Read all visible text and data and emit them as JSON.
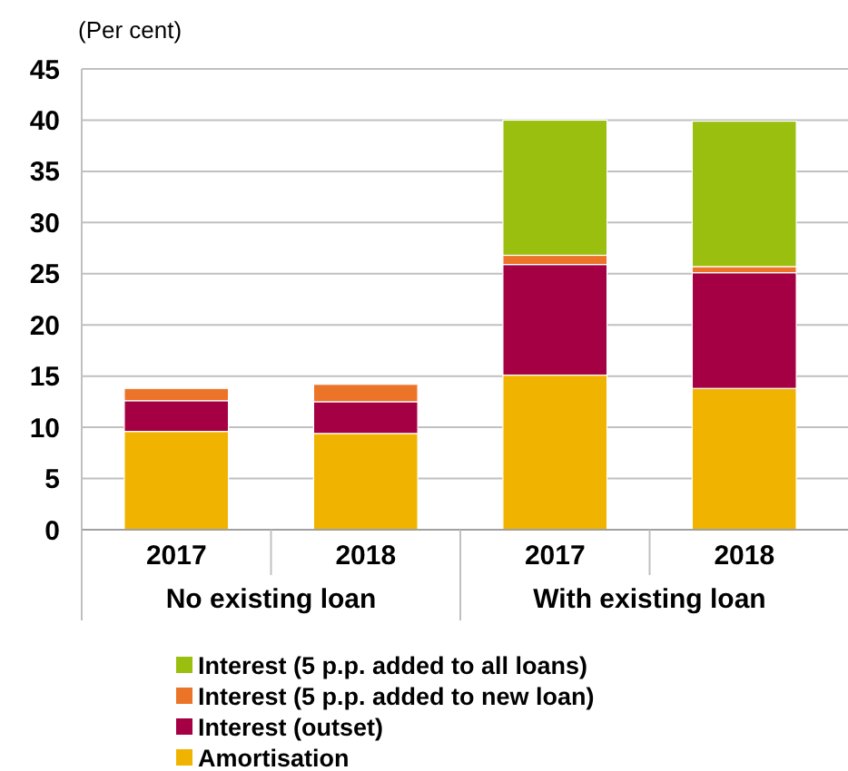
{
  "chart_data": {
    "type": "bar",
    "stacked": true,
    "ylabel": "(Per cent)",
    "categories": [
      "2017",
      "2018",
      "2017",
      "2018"
    ],
    "annotations": [
      "No existing loan",
      "With existing loan"
    ],
    "series": [
      {
        "name": "Amortisation",
        "color": "#f0b400",
        "values": [
          9.6,
          9.4,
          15.1,
          13.8
        ]
      },
      {
        "name": "Interest (outset)",
        "color": "#a50044",
        "values": [
          3.0,
          3.1,
          10.8,
          11.3
        ]
      },
      {
        "name": "Interest (5 p.p. added to new loan)",
        "color": "#ec7429",
        "values": [
          1.2,
          1.7,
          0.9,
          0.6
        ]
      },
      {
        "name": "Interest (5 p.p. added to all loans)",
        "color": "#9abf0f",
        "values": [
          null,
          null,
          13.2,
          14.2
        ]
      }
    ],
    "ylim": [
      0,
      45
    ],
    "yticks": [
      0,
      5,
      10,
      15,
      20,
      25,
      30,
      35,
      40,
      45
    ],
    "grid": "y",
    "legend": "bottom"
  }
}
